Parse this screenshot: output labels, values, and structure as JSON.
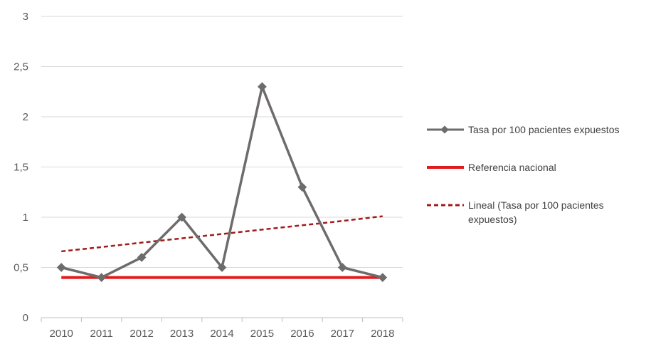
{
  "chart_data": {
    "type": "line",
    "categories": [
      "2010",
      "2011",
      "2012",
      "2013",
      "2014",
      "2015",
      "2016",
      "2017",
      "2018"
    ],
    "ylim": [
      0,
      3
    ],
    "y_ticks": [
      "0",
      "0,5",
      "1",
      "1,5",
      "2",
      "2,5",
      "3"
    ],
    "y_tick_values": [
      0,
      0.5,
      1,
      1.5,
      2,
      2.5,
      3
    ],
    "grid": "horizontal",
    "legend_position": "right",
    "series": [
      {
        "name": "Tasa por 100 pacientes expuestos",
        "color": "#6e6b6b",
        "style": "solid-markers",
        "values": [
          0.5,
          0.4,
          0.6,
          1.0,
          0.5,
          2.3,
          1.3,
          0.5,
          0.4
        ]
      },
      {
        "name": "Referencia nacional",
        "color": "#e31a1c",
        "style": "solid",
        "values": [
          0.4,
          0.4,
          0.4,
          0.4,
          0.4,
          0.4,
          0.4,
          0.4,
          0.4
        ]
      },
      {
        "name": "Lineal (Tasa por 100 pacientes expuestos)",
        "color": "#a11b1b",
        "style": "dashed",
        "values": [
          0.66,
          0.703,
          0.747,
          0.79,
          0.833,
          0.877,
          0.92,
          0.963,
          1.01
        ]
      }
    ]
  }
}
